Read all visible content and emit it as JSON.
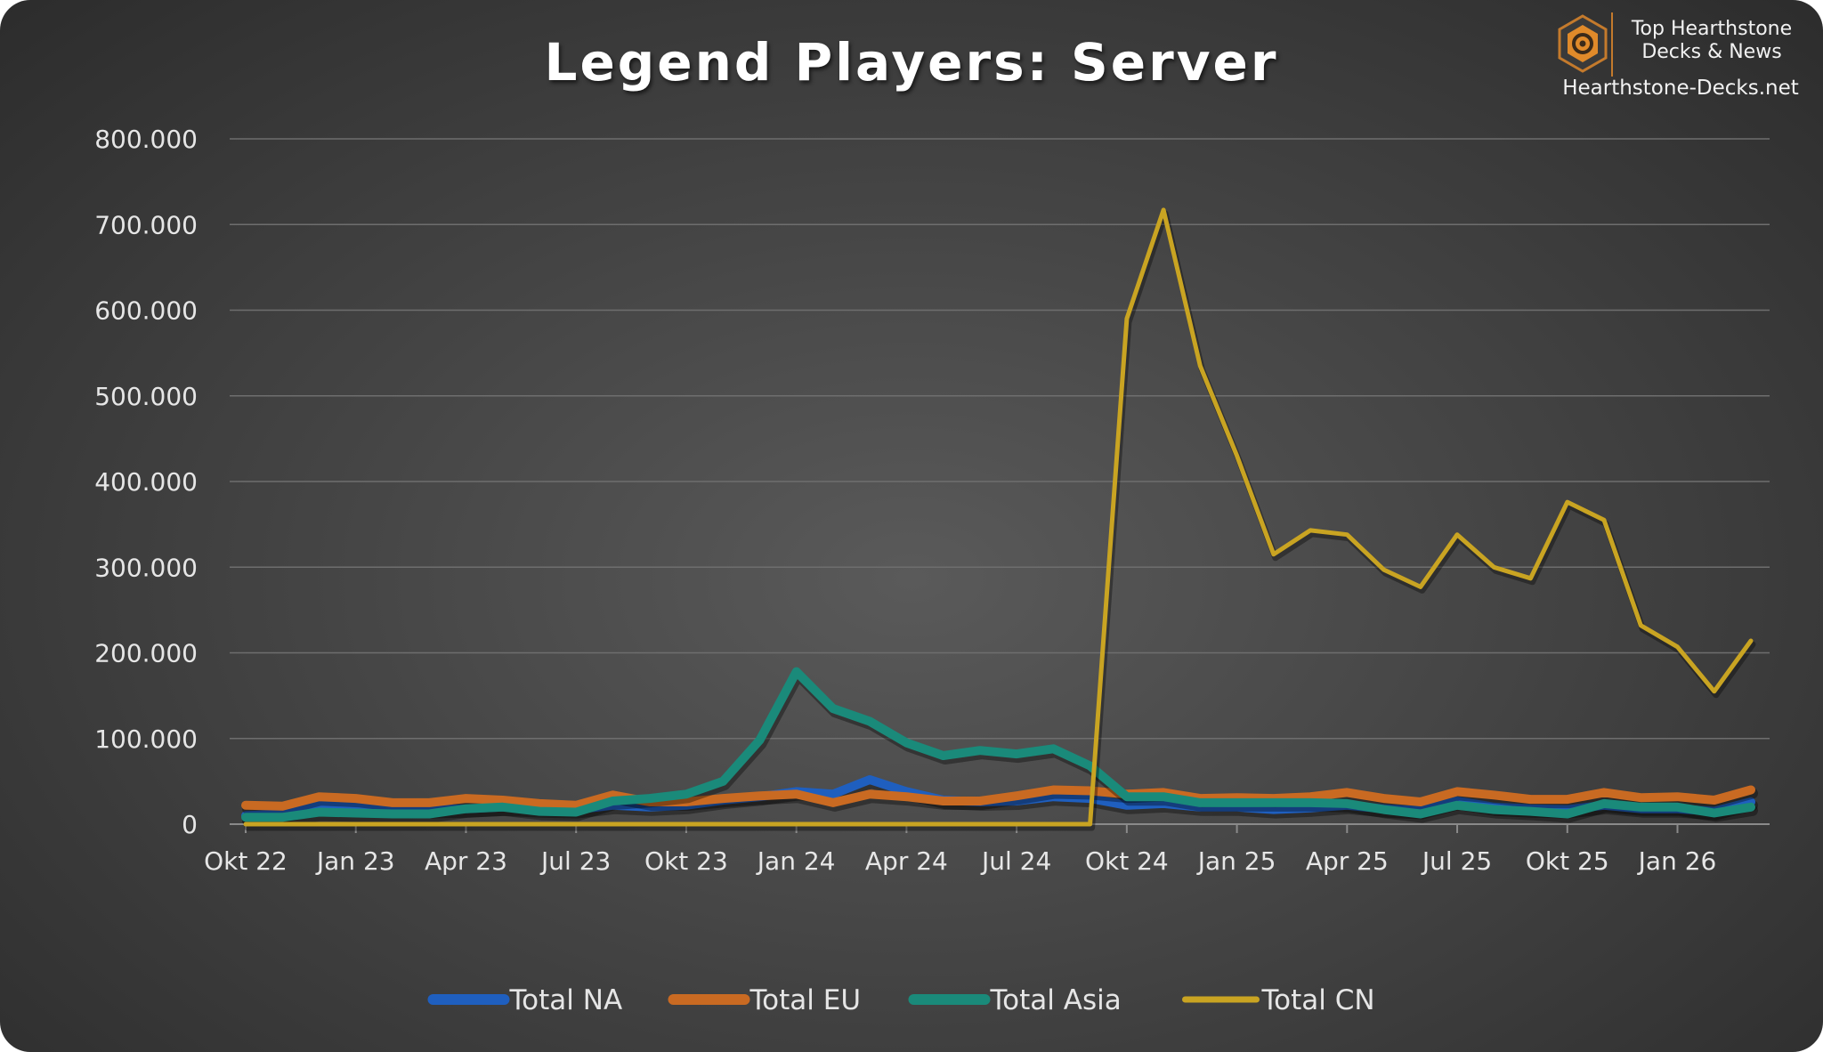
{
  "brand": {
    "line1": "Top Hearthstone",
    "line2": "Decks & News",
    "site": "Hearthstone-Decks.net",
    "logo_icon": "hearthstone-hexagon-logo-icon",
    "accent": "#c47a2c"
  },
  "chart_data": {
    "type": "line",
    "title": "Legend Players: Server",
    "xlabel": "",
    "ylabel": "",
    "ylim": [
      0,
      800000
    ],
    "y_ticks": [
      0,
      100000,
      200000,
      300000,
      400000,
      500000,
      600000,
      700000,
      800000
    ],
    "y_tick_labels": [
      "0",
      "100.000",
      "200.000",
      "300.000",
      "400.000",
      "500.000",
      "600.000",
      "700.000",
      "800.000"
    ],
    "x": [
      "Okt 22",
      "Nov 22",
      "Dez 22",
      "Jan 23",
      "Feb 23",
      "Mär 23",
      "Apr 23",
      "Mai 23",
      "Jun 23",
      "Jul 23",
      "Aug 23",
      "Sep 23",
      "Okt 23",
      "Nov 23",
      "Dez 23",
      "Jan 24",
      "Feb 24",
      "Mär 24",
      "Apr 24",
      "Mai 24",
      "Jun 24",
      "Jul 24",
      "Aug 24",
      "Sep 24",
      "Okt 24",
      "Nov 24",
      "Dez 24",
      "Jan 25",
      "Feb 25",
      "Mär 25",
      "Apr 25",
      "Mai 25",
      "Jun 25",
      "Jul 25",
      "Aug 25",
      "Sep 25",
      "Okt 25",
      "Nov 25",
      "Dez 25",
      "Jan 26",
      "Feb 26",
      "Mär 26"
    ],
    "x_tick_labels": [
      {
        "index": 0,
        "label": "Okt 22"
      },
      {
        "index": 3,
        "label": "Jan 23"
      },
      {
        "index": 6,
        "label": "Apr 23"
      },
      {
        "index": 9,
        "label": "Jul 23"
      },
      {
        "index": 12,
        "label": "Okt 23"
      },
      {
        "index": 15,
        "label": "Jan 24"
      },
      {
        "index": 18,
        "label": "Apr 24"
      },
      {
        "index": 21,
        "label": "Jul 24"
      },
      {
        "index": 24,
        "label": "Okt 24"
      },
      {
        "index": 27,
        "label": "Jan 25"
      },
      {
        "index": 30,
        "label": "Apr 25"
      },
      {
        "index": 33,
        "label": "Jul 25"
      },
      {
        "index": 36,
        "label": "Okt 25"
      },
      {
        "index": 39,
        "label": "Jan 26"
      }
    ],
    "grid": true,
    "legend_position": "bottom",
    "series": [
      {
        "name": "Total NA",
        "color": "#1f5fbf",
        "width": 10,
        "values": [
          10000,
          12000,
          22000,
          20000,
          18000,
          17000,
          18000,
          20000,
          18000,
          17000,
          22000,
          20000,
          22000,
          28000,
          32000,
          38000,
          35000,
          52000,
          38000,
          28000,
          26000,
          27000,
          32000,
          30000,
          22000,
          24000,
          20000,
          20000,
          17000,
          19000,
          22000,
          18000,
          16000,
          27000,
          20000,
          18000,
          17000,
          22000,
          18000,
          18000,
          15000,
          26000
        ]
      },
      {
        "name": "Total EU",
        "color": "#c96a22",
        "width": 10,
        "values": [
          22000,
          21000,
          32000,
          30000,
          25000,
          25000,
          30000,
          28000,
          24000,
          22000,
          34000,
          26000,
          26000,
          30000,
          33000,
          35000,
          25000,
          35000,
          32000,
          27000,
          27000,
          33000,
          40000,
          39000,
          35000,
          37000,
          30000,
          31000,
          30000,
          32000,
          37000,
          30000,
          26000,
          38000,
          34000,
          29000,
          29000,
          37000,
          31000,
          32000,
          28000,
          40000
        ]
      },
      {
        "name": "Total Asia",
        "color": "#1a8a7a",
        "width": 10,
        "values": [
          8000,
          8000,
          14000,
          13000,
          12000,
          12000,
          18000,
          20000,
          15000,
          14000,
          27000,
          30000,
          35000,
          50000,
          98000,
          178000,
          135000,
          120000,
          95000,
          80000,
          86000,
          82000,
          88000,
          68000,
          32000,
          32000,
          25000,
          25000,
          25000,
          25000,
          24000,
          17000,
          12000,
          22000,
          17000,
          15000,
          12000,
          24000,
          20000,
          20000,
          13000,
          20000
        ]
      },
      {
        "name": "Total CN",
        "color": "#c9a422",
        "width": 5,
        "values": [
          0,
          0,
          0,
          0,
          0,
          0,
          0,
          0,
          0,
          0,
          0,
          0,
          0,
          0,
          0,
          0,
          0,
          0,
          0,
          0,
          0,
          0,
          0,
          0,
          590000,
          717000,
          535000,
          430000,
          315000,
          343000,
          338000,
          297000,
          277000,
          338000,
          300000,
          287000,
          376000,
          355000,
          232000,
          207000,
          155000,
          214000
        ]
      }
    ]
  }
}
